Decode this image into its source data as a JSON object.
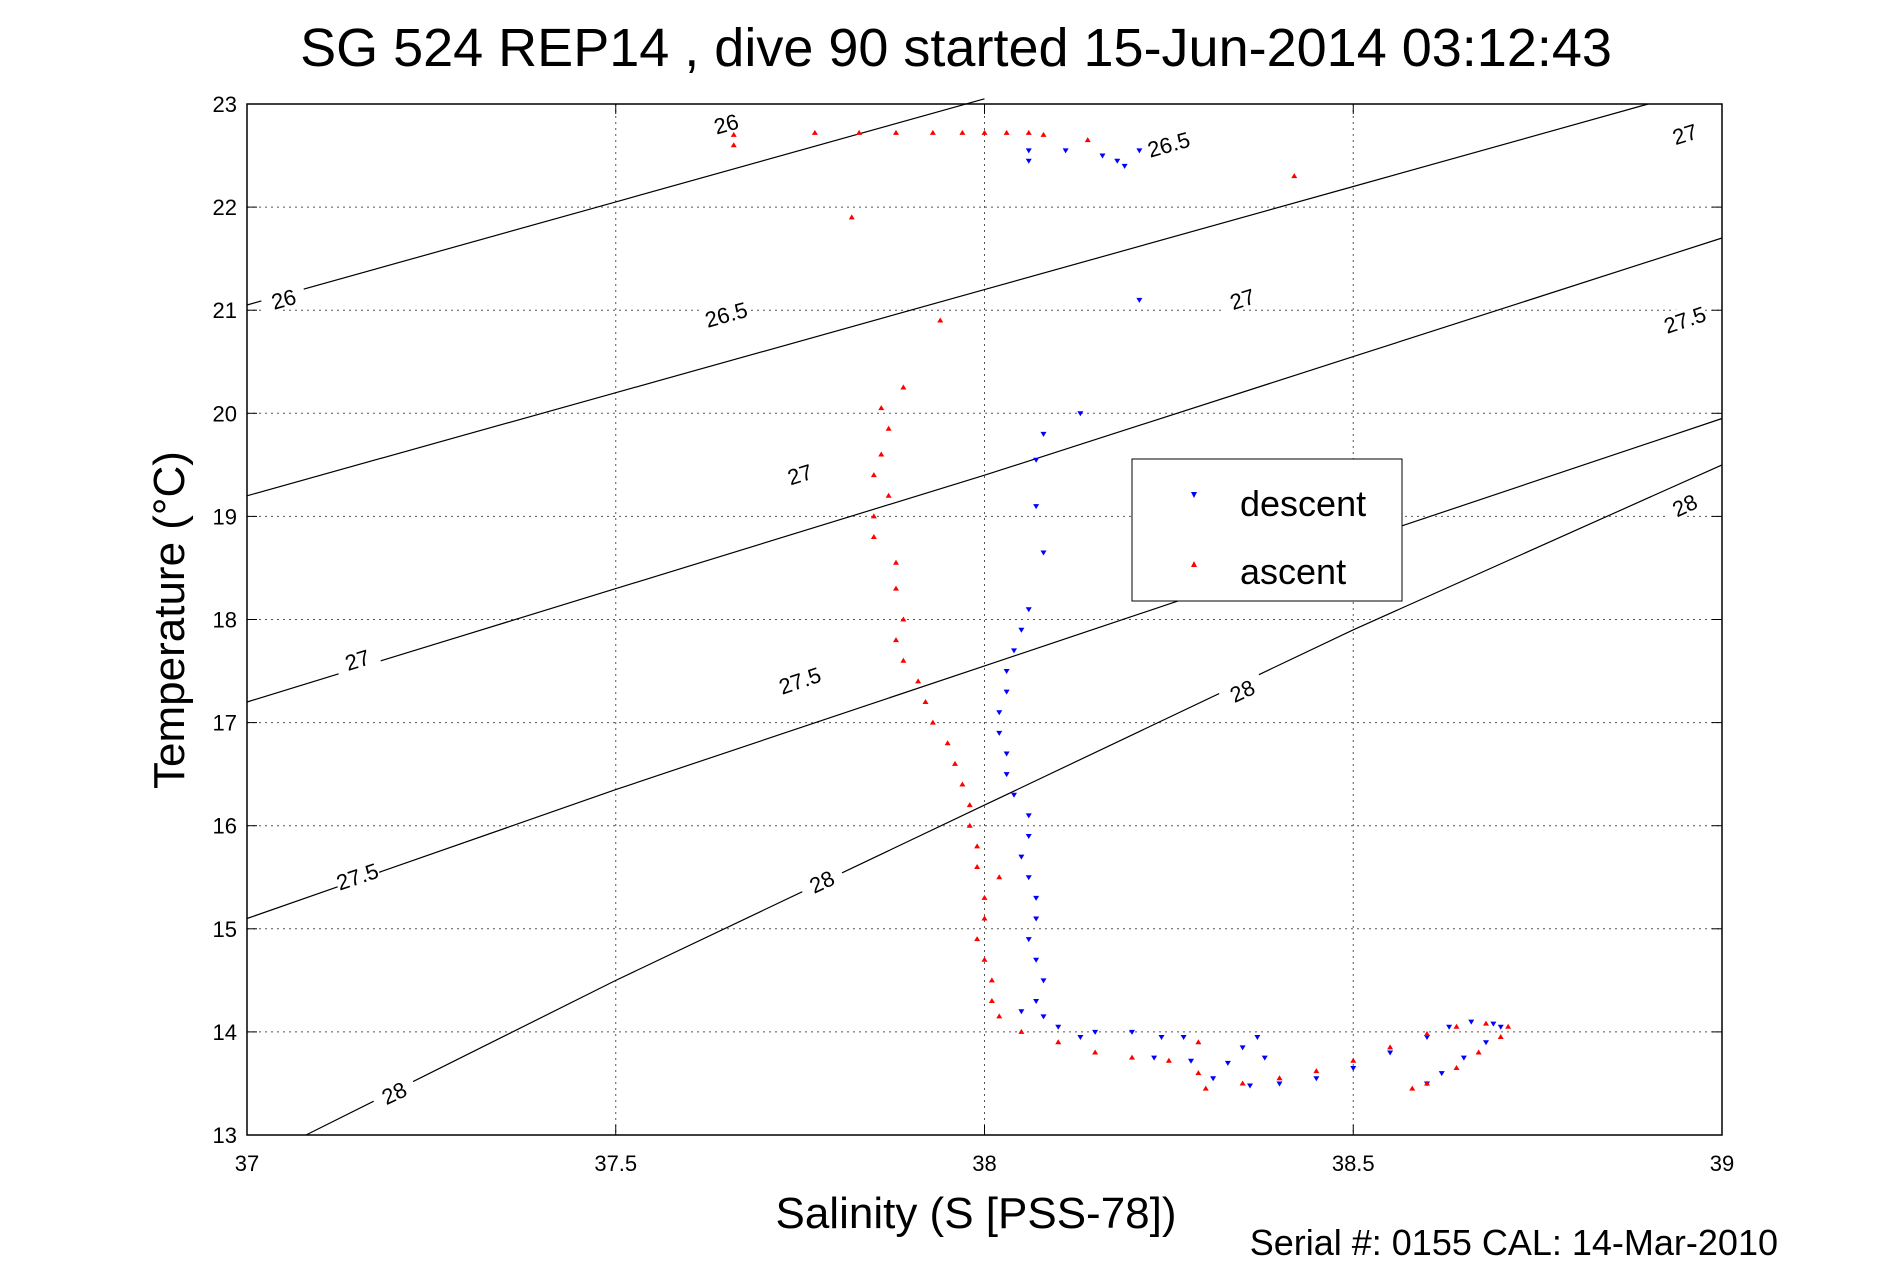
{
  "chart_data": {
    "type": "scatter",
    "title": "SG 524   REP14  , dive 90 started 15-Jun-2014 03:12:43",
    "xlabel": "Salinity (S [PSS-78])",
    "ylabel": "Temperature (°C)",
    "xlim": [
      37,
      39
    ],
    "ylim": [
      13,
      23
    ],
    "xticks": [
      "37",
      "37.5",
      "38",
      "38.5",
      "39"
    ],
    "yticks": [
      "13",
      "14",
      "15",
      "16",
      "17",
      "18",
      "19",
      "20",
      "21",
      "22",
      "23"
    ],
    "grid": true,
    "legend_position": "center-right",
    "footer": "Serial #: 0155  CAL: 14-Mar-2010",
    "density_contours": [
      {
        "label": "26",
        "labels_at": [
          [
            37.05,
            21.1
          ],
          [
            37.65,
            22.8
          ]
        ],
        "points": [
          [
            37.0,
            21.05
          ],
          [
            37.5,
            22.05
          ],
          [
            38.0,
            23.05
          ]
        ]
      },
      {
        "label": "26.5",
        "labels_at": [
          [
            37.65,
            20.95
          ],
          [
            38.25,
            22.6
          ]
        ],
        "points": [
          [
            37.0,
            19.2
          ],
          [
            37.5,
            20.2
          ],
          [
            38.0,
            21.2
          ],
          [
            38.5,
            22.2
          ],
          [
            38.9,
            23.0
          ]
        ]
      },
      {
        "label": "27",
        "labels_at": [
          [
            37.15,
            17.6
          ],
          [
            37.75,
            19.4
          ],
          [
            38.35,
            21.1
          ],
          [
            38.95,
            22.7
          ]
        ],
        "points": [
          [
            37.0,
            17.2
          ],
          [
            37.5,
            18.3
          ],
          [
            38.0,
            19.4
          ],
          [
            38.5,
            20.55
          ],
          [
            39.0,
            21.7
          ]
        ]
      },
      {
        "label": "27.5",
        "labels_at": [
          [
            37.15,
            15.5
          ],
          [
            37.75,
            17.4
          ],
          [
            38.95,
            20.9
          ]
        ],
        "points": [
          [
            37.0,
            15.1
          ],
          [
            37.5,
            16.35
          ],
          [
            38.0,
            17.55
          ],
          [
            38.5,
            18.75
          ],
          [
            39.0,
            19.95
          ]
        ]
      },
      {
        "label": "28",
        "labels_at": [
          [
            37.2,
            13.4
          ],
          [
            37.78,
            15.45
          ],
          [
            38.35,
            17.3
          ],
          [
            38.95,
            19.1
          ]
        ],
        "points": [
          [
            37.08,
            13.0
          ],
          [
            37.5,
            14.5
          ],
          [
            38.0,
            16.2
          ],
          [
            38.5,
            17.9
          ],
          [
            39.0,
            19.5
          ]
        ]
      }
    ],
    "series": [
      {
        "name": "descent",
        "color": "#0000ff",
        "marker": "triangle-down",
        "points": [
          [
            38.06,
            22.55
          ],
          [
            38.06,
            22.45
          ],
          [
            38.11,
            22.55
          ],
          [
            38.16,
            22.5
          ],
          [
            38.18,
            22.45
          ],
          [
            38.19,
            22.4
          ],
          [
            38.21,
            22.55
          ],
          [
            38.21,
            21.1
          ],
          [
            38.13,
            20.0
          ],
          [
            38.08,
            19.8
          ],
          [
            38.07,
            19.55
          ],
          [
            38.07,
            19.1
          ],
          [
            38.08,
            18.65
          ],
          [
            38.06,
            18.1
          ],
          [
            38.05,
            17.9
          ],
          [
            38.04,
            17.7
          ],
          [
            38.03,
            17.5
          ],
          [
            38.03,
            17.3
          ],
          [
            38.02,
            17.1
          ],
          [
            38.02,
            16.9
          ],
          [
            38.03,
            16.7
          ],
          [
            38.03,
            16.5
          ],
          [
            38.04,
            16.3
          ],
          [
            38.06,
            16.1
          ],
          [
            38.06,
            15.9
          ],
          [
            38.05,
            15.7
          ],
          [
            38.06,
            15.5
          ],
          [
            38.07,
            15.3
          ],
          [
            38.07,
            15.1
          ],
          [
            38.06,
            14.9
          ],
          [
            38.07,
            14.7
          ],
          [
            38.08,
            14.5
          ],
          [
            38.07,
            14.3
          ],
          [
            38.08,
            14.15
          ],
          [
            38.05,
            14.2
          ],
          [
            38.1,
            14.05
          ],
          [
            38.13,
            13.95
          ],
          [
            38.15,
            14.0
          ],
          [
            38.2,
            14.0
          ],
          [
            38.24,
            13.95
          ],
          [
            38.27,
            13.95
          ],
          [
            38.23,
            13.75
          ],
          [
            38.28,
            13.72
          ],
          [
            38.33,
            13.7
          ],
          [
            38.35,
            13.85
          ],
          [
            38.37,
            13.95
          ],
          [
            38.38,
            13.75
          ],
          [
            38.31,
            13.55
          ],
          [
            38.36,
            13.48
          ],
          [
            38.4,
            13.5
          ],
          [
            38.45,
            13.55
          ],
          [
            38.5,
            13.65
          ],
          [
            38.55,
            13.8
          ],
          [
            38.6,
            13.95
          ],
          [
            38.63,
            14.05
          ],
          [
            38.66,
            14.1
          ],
          [
            38.69,
            14.08
          ],
          [
            38.7,
            14.05
          ],
          [
            38.68,
            13.9
          ],
          [
            38.65,
            13.75
          ],
          [
            38.62,
            13.6
          ],
          [
            38.6,
            13.5
          ]
        ]
      },
      {
        "name": "ascent",
        "color": "#ff0000",
        "marker": "triangle-up",
        "points": [
          [
            37.66,
            22.7
          ],
          [
            37.66,
            22.6
          ],
          [
            37.77,
            22.72
          ],
          [
            37.83,
            22.72
          ],
          [
            37.88,
            22.72
          ],
          [
            37.93,
            22.72
          ],
          [
            37.97,
            22.72
          ],
          [
            38.0,
            22.72
          ],
          [
            38.03,
            22.72
          ],
          [
            38.06,
            22.72
          ],
          [
            38.08,
            22.7
          ],
          [
            38.14,
            22.65
          ],
          [
            38.42,
            22.3
          ],
          [
            37.82,
            21.9
          ],
          [
            37.94,
            20.9
          ],
          [
            37.89,
            20.25
          ],
          [
            37.86,
            20.05
          ],
          [
            37.87,
            19.85
          ],
          [
            37.86,
            19.6
          ],
          [
            37.85,
            19.4
          ],
          [
            37.87,
            19.2
          ],
          [
            37.85,
            19.0
          ],
          [
            37.85,
            18.8
          ],
          [
            37.88,
            18.55
          ],
          [
            37.88,
            18.3
          ],
          [
            37.89,
            18.0
          ],
          [
            37.88,
            17.8
          ],
          [
            37.89,
            17.6
          ],
          [
            37.91,
            17.4
          ],
          [
            37.92,
            17.2
          ],
          [
            37.93,
            17.0
          ],
          [
            37.95,
            16.8
          ],
          [
            37.96,
            16.6
          ],
          [
            37.97,
            16.4
          ],
          [
            37.98,
            16.2
          ],
          [
            37.98,
            16.0
          ],
          [
            37.99,
            15.8
          ],
          [
            37.99,
            15.6
          ],
          [
            38.02,
            15.5
          ],
          [
            38.0,
            15.3
          ],
          [
            38.0,
            15.1
          ],
          [
            37.99,
            14.9
          ],
          [
            38.0,
            14.7
          ],
          [
            38.01,
            14.5
          ],
          [
            38.01,
            14.3
          ],
          [
            38.02,
            14.15
          ],
          [
            38.05,
            14.0
          ],
          [
            38.1,
            13.9
          ],
          [
            38.15,
            13.8
          ],
          [
            38.2,
            13.75
          ],
          [
            38.25,
            13.72
          ],
          [
            38.29,
            13.9
          ],
          [
            38.29,
            13.6
          ],
          [
            38.3,
            13.45
          ],
          [
            38.35,
            13.5
          ],
          [
            38.4,
            13.55
          ],
          [
            38.45,
            13.62
          ],
          [
            38.5,
            13.72
          ],
          [
            38.55,
            13.85
          ],
          [
            38.6,
            13.98
          ],
          [
            38.64,
            14.05
          ],
          [
            38.68,
            14.08
          ],
          [
            38.71,
            14.05
          ],
          [
            38.7,
            13.95
          ],
          [
            38.67,
            13.8
          ],
          [
            38.64,
            13.65
          ],
          [
            38.6,
            13.5
          ],
          [
            38.58,
            13.45
          ]
        ]
      }
    ]
  }
}
